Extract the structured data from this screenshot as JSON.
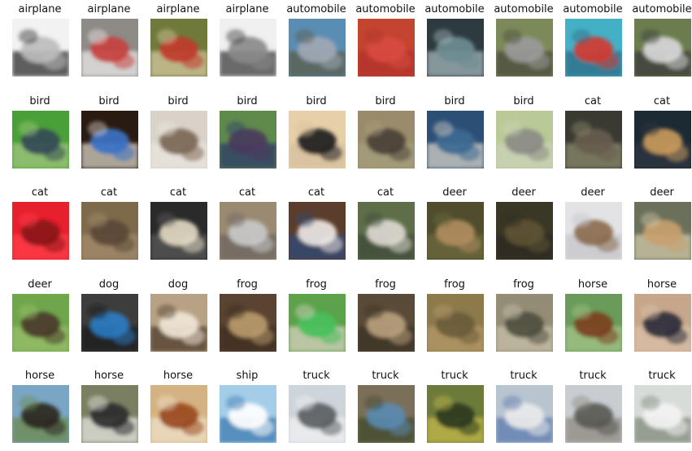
{
  "figure": {
    "rows": [
      [
        "airplane",
        "airplane",
        "airplane",
        "airplane",
        "automobile",
        "automobile",
        "automobile",
        "automobile",
        "automobile",
        "automobile"
      ],
      [
        "bird",
        "bird",
        "bird",
        "bird",
        "bird",
        "bird",
        "bird",
        "bird",
        "cat",
        "cat"
      ],
      [
        "cat",
        "cat",
        "cat",
        "cat",
        "cat",
        "cat",
        "deer",
        "deer",
        "deer",
        "deer"
      ],
      [
        "deer",
        "dog",
        "dog",
        "frog",
        "frog",
        "frog",
        "frog",
        "frog",
        "horse",
        "horse"
      ],
      [
        "horse",
        "horse",
        "horse",
        "ship",
        "truck",
        "truck",
        "truck",
        "truck",
        "truck",
        "truck"
      ]
    ]
  },
  "thumb_palettes": [
    [
      [
        "#f2f2f2",
        "#bdbdbd",
        "#2b2b2b"
      ],
      [
        "#8e8a86",
        "#c7413d",
        "#e9e9ea"
      ],
      [
        "#6f7a3a",
        "#c0392b",
        "#d4c8a0"
      ],
      [
        "#f0f0f0",
        "#8a8a8a",
        "#3c3c3c"
      ],
      [
        "#5a8db3",
        "#a0a8b4",
        "#5b5b46"
      ],
      [
        "#c3442f",
        "#d84a3f",
        "#b0302c"
      ],
      [
        "#2d3a3e",
        "#6e8c92",
        "#a1b6ba"
      ],
      [
        "#7c8a5a",
        "#9a9a9a",
        "#4a4a3a"
      ],
      [
        "#44b0c6",
        "#d33b2f",
        "#2d6b86"
      ],
      [
        "#6b7c4e",
        "#d7d7d9",
        "#3b3b3b"
      ]
    ],
    [
      [
        "#4aa038",
        "#344b57",
        "#a1c57e"
      ],
      [
        "#2a1b12",
        "#3a73c5",
        "#d9d1c4"
      ],
      [
        "#d8d2c8",
        "#7b6754",
        "#eae6df"
      ],
      [
        "#5f8a4c",
        "#4a3a5c",
        "#2f3b6a"
      ],
      [
        "#e7d0a9",
        "#202020",
        "#d6bf9c"
      ],
      [
        "#9a8b6b",
        "#4a4138",
        "#a6a07c"
      ],
      [
        "#2c4f75",
        "#3d6991",
        "#d6d1c7"
      ],
      [
        "#b9ca96",
        "#8b8b84",
        "#cbd3b8"
      ],
      [
        "#3a3a32",
        "#675c4e",
        "#8b8a6b"
      ],
      [
        "#1c2a33",
        "#c99a5c",
        "#2b3640"
      ]
    ],
    [
      [
        "#e6202c",
        "#8a1418",
        "#ff3c4a"
      ],
      [
        "#7d6a4b",
        "#5a4836",
        "#a58c6c"
      ],
      [
        "#2a2a2a",
        "#e2d8c2",
        "#5a5a5a"
      ],
      [
        "#9a8a72",
        "#c8c8c9",
        "#6b6360"
      ],
      [
        "#5b3d2c",
        "#ece6e2",
        "#2e4a7a"
      ],
      [
        "#5d6e48",
        "#dcd8d0",
        "#3e4a3a"
      ],
      [
        "#4f4d2d",
        "#b08c5f",
        "#6c6a3c"
      ],
      [
        "#3b3725",
        "#5d5234",
        "#2b2a1f"
      ],
      [
        "#e3e3e6",
        "#8b6b4e",
        "#c6c6ca"
      ],
      [
        "#6b705a",
        "#c8a16e",
        "#d0c8a8"
      ]
    ],
    [
      [
        "#6fa64b",
        "#4a3a2b",
        "#98bf6a"
      ],
      [
        "#3d3d3d",
        "#2a7bc0",
        "#171717"
      ],
      [
        "#b8a285",
        "#f0e6d6",
        "#4d3b2a"
      ],
      [
        "#5a4330",
        "#b89a6b",
        "#3c2c1f"
      ],
      [
        "#5ba24a",
        "#47c05b",
        "#d8d0c0"
      ],
      [
        "#5a4a38",
        "#b7a07c",
        "#3a3024"
      ],
      [
        "#8c7a4b",
        "#6a5b3a",
        "#b59a6a"
      ],
      [
        "#958c76",
        "#4f4f3f",
        "#c8c0aa"
      ],
      [
        "#6a9b5a",
        "#7b3f1f",
        "#a3c487"
      ],
      [
        "#c7a78b",
        "#2c2c3a",
        "#d9c0a8"
      ]
    ],
    [
      [
        "#7aa6c6",
        "#2c2620",
        "#6c8a4a"
      ],
      [
        "#7a7f62",
        "#2c2b2e",
        "#e7e7e2"
      ],
      [
        "#d5b283",
        "#9a4a1f",
        "#efe1c9"
      ],
      [
        "#a3cde8",
        "#ffffff",
        "#3a7ab0"
      ],
      [
        "#cdd4da",
        "#5b5f63",
        "#f2f2f3"
      ],
      [
        "#7c6f5a",
        "#5a8ab0",
        "#3f4a2a"
      ],
      [
        "#6d7b3a",
        "#2a3a1f",
        "#c4b84a"
      ],
      [
        "#b8c4cf",
        "#e9e9ea",
        "#5c7ab0"
      ],
      [
        "#c9cdd2",
        "#5a5a55",
        "#8f8a80"
      ],
      [
        "#d8dcd8",
        "#f3f3f3",
        "#7f8a7a"
      ]
    ]
  ]
}
